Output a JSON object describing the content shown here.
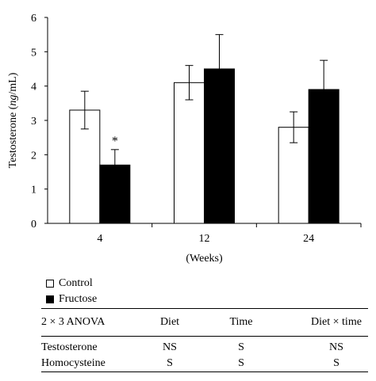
{
  "chart_data": {
    "type": "bar",
    "categories": [
      "4",
      "12",
      "24"
    ],
    "series": [
      {
        "name": "Control",
        "values": [
          3.3,
          4.1,
          2.8
        ],
        "errors": [
          0.55,
          0.5,
          0.45
        ],
        "color": "#ffffff"
      },
      {
        "name": "Fructose",
        "values": [
          1.7,
          4.5,
          3.9
        ],
        "errors": [
          0.45,
          1.0,
          0.85
        ],
        "color": "#000000"
      }
    ],
    "annotations": [
      {
        "category": "4",
        "series": "Fructose",
        "text": "*"
      }
    ],
    "ylabel": "Testosterone (ng/mL)",
    "xlabel": "(Weeks)",
    "ylim": [
      0,
      6
    ],
    "yticks": [
      "0",
      "1",
      "2",
      "3",
      "4",
      "5",
      "6"
    ],
    "grid": false
  },
  "legend": {
    "control": "Control",
    "fructose": "Fructose"
  },
  "anova": {
    "headers": [
      "2 × 3 ANOVA",
      "Diet",
      "Time",
      "Diet × time"
    ],
    "rows": [
      [
        "Testosterone",
        "NS",
        "S",
        "NS"
      ],
      [
        "Homocysteine",
        "S",
        "S",
        "S"
      ]
    ]
  }
}
